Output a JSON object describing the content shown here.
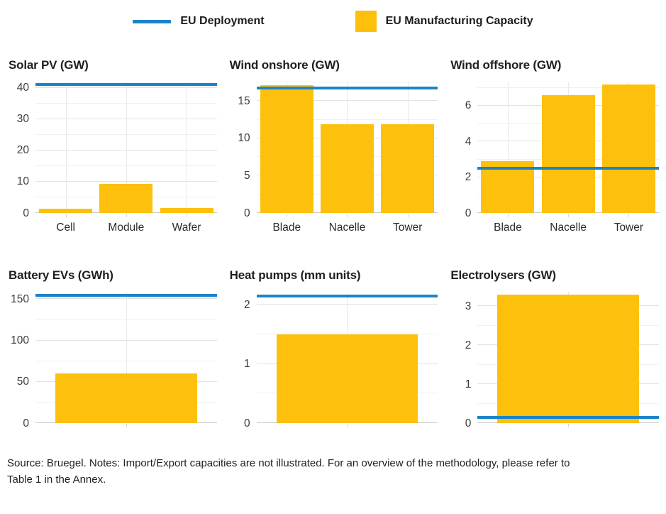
{
  "legend": {
    "deployment_label": "EU Deployment",
    "capacity_label": "EU Manufacturing Capacity"
  },
  "colors": {
    "deployment_blue": "#1b84c7",
    "capacity_yellow": "#fdc10d"
  },
  "source_note": "Source: Bruegel. Notes: Import/Export capacities are not illustrated. For an overview of the methodology, please refer to Table 1 in the Annex.",
  "chart_data": [
    {
      "type": "bar",
      "title": "Solar PV (GW)",
      "categories": [
        "Cell",
        "Module",
        "Wafer"
      ],
      "values": [
        1.4,
        9.2,
        1.7
      ],
      "series": [
        {
          "name": "EU Manufacturing Capacity",
          "values": [
            1.4,
            9.2,
            1.7
          ]
        },
        {
          "name": "EU Deployment",
          "values": [
            41,
            41,
            41
          ]
        }
      ],
      "deployment": 41,
      "yticks": [
        0,
        10,
        20,
        30,
        40
      ],
      "minor_yticks": [
        5,
        15,
        25,
        35
      ],
      "ylim": [
        0,
        42
      ],
      "grid": true,
      "legend_position": "top"
    },
    {
      "type": "bar",
      "title": "Wind onshore (GW)",
      "categories": [
        "Blade",
        "Nacelle",
        "Tower"
      ],
      "values": [
        17.1,
        11.9,
        11.9
      ],
      "series": [
        {
          "name": "EU Manufacturing Capacity",
          "values": [
            17.1,
            11.9,
            11.9
          ]
        },
        {
          "name": "EU Deployment",
          "values": [
            16.7,
            16.7,
            16.7
          ]
        }
      ],
      "deployment": 16.7,
      "yticks": [
        0,
        5,
        10,
        15
      ],
      "minor_yticks": [
        2.5,
        7.5,
        12.5,
        17.5
      ],
      "ylim": [
        0,
        17.6
      ],
      "grid": true,
      "legend_position": "top"
    },
    {
      "type": "bar",
      "title": "Wind offshore (GW)",
      "categories": [
        "Blade",
        "Nacelle",
        "Tower"
      ],
      "values": [
        2.9,
        6.6,
        7.2
      ],
      "series": [
        {
          "name": "EU Manufacturing Capacity",
          "values": [
            2.9,
            6.6,
            7.2
          ]
        },
        {
          "name": "EU Deployment",
          "values": [
            2.5,
            2.5,
            2.5
          ]
        }
      ],
      "deployment": 2.5,
      "yticks": [
        0,
        2,
        4,
        6
      ],
      "minor_yticks": [
        1,
        3,
        5,
        7
      ],
      "ylim": [
        0,
        7.35
      ],
      "grid": true,
      "legend_position": "top"
    },
    {
      "type": "bar",
      "title": "Battery EVs (GWh)",
      "categories": [],
      "values": [
        60
      ],
      "series": [
        {
          "name": "EU Manufacturing Capacity",
          "values": [
            60
          ]
        },
        {
          "name": "EU Deployment",
          "values": [
            155
          ]
        }
      ],
      "deployment": 155,
      "yticks": [
        0,
        50,
        100,
        150
      ],
      "minor_yticks": [
        25,
        75,
        125
      ],
      "ylim": [
        0,
        159
      ],
      "grid": true,
      "legend_position": "top"
    },
    {
      "type": "bar",
      "title": "Heat pumps (mm units)",
      "categories": [],
      "values": [
        1.5
      ],
      "series": [
        {
          "name": "EU Manufacturing Capacity",
          "values": [
            1.5
          ]
        },
        {
          "name": "EU Deployment",
          "values": [
            2.15
          ]
        }
      ],
      "deployment": 2.15,
      "yticks": [
        0,
        1,
        2
      ],
      "minor_yticks": [
        0.5,
        1.5
      ],
      "ylim": [
        0,
        2.22
      ],
      "grid": true,
      "legend_position": "top"
    },
    {
      "type": "bar",
      "title": "Electrolysers (GW)",
      "categories": [],
      "values": [
        3.3
      ],
      "series": [
        {
          "name": "EU Manufacturing Capacity",
          "values": [
            3.3
          ]
        },
        {
          "name": "EU Deployment",
          "values": [
            0.15
          ]
        }
      ],
      "deployment": 0.15,
      "yticks": [
        0,
        1,
        2,
        3
      ],
      "minor_yticks": [
        0.5,
        1.5,
        2.5
      ],
      "ylim": [
        0,
        3.37
      ],
      "grid": true,
      "legend_position": "top"
    }
  ]
}
